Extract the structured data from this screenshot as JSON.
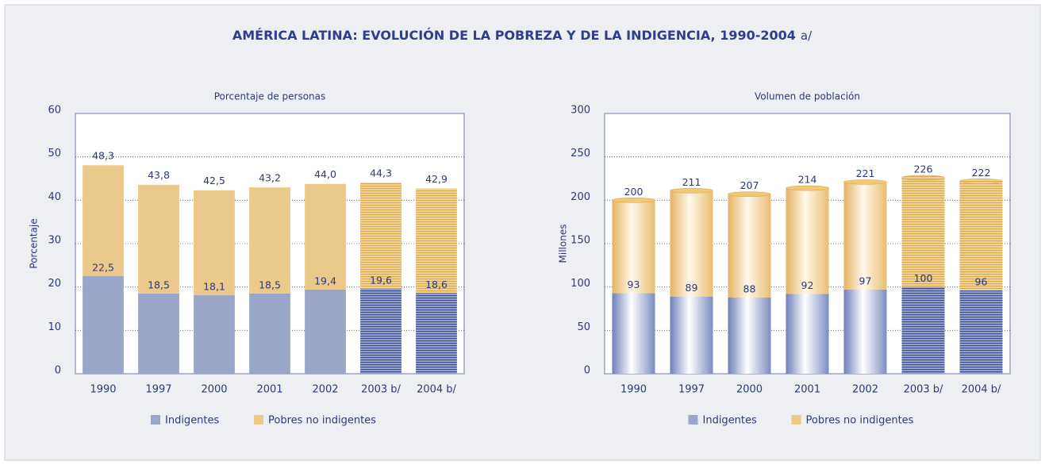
{
  "header": {
    "title": "AMÉRICA LATINA: EVOLUCIÓN DE LA POBREZA Y DE LA INDIGENCIA, 1990-2004",
    "note": "a/"
  },
  "chart_data": [
    {
      "type": "stacked-bar",
      "title": "Porcentaje de personas",
      "y_label": "Porcentaje",
      "categories": [
        "1990",
        "1997",
        "2000",
        "2001",
        "2002",
        "2003 b/",
        "2004 b/"
      ],
      "series": [
        {
          "name": "Indigentes",
          "color": "#9aa6c8",
          "values": [
            22.5,
            18.5,
            18.1,
            18.5,
            19.4,
            19.6,
            18.6
          ],
          "value_labels": [
            "22,5",
            "18,5",
            "18,1",
            "18,5",
            "19,4",
            "19,6",
            "18,6"
          ]
        },
        {
          "name": "Pobres no indigentes",
          "color": "#ebc98b",
          "values": [
            25.8,
            25.3,
            24.4,
            24.7,
            24.6,
            24.7,
            24.3
          ]
        }
      ],
      "totals": {
        "values": [
          48.3,
          43.8,
          42.5,
          43.2,
          44.0,
          44.3,
          42.9
        ],
        "value_labels": [
          "48,3",
          "43,8",
          "42,5",
          "43,2",
          "44,0",
          "44,3",
          "42,9"
        ]
      },
      "striped": [
        false,
        false,
        false,
        false,
        false,
        true,
        true
      ],
      "style": "flat",
      "ylim": [
        0,
        60
      ],
      "yticks": [
        0,
        10,
        20,
        30,
        40,
        50,
        60
      ],
      "grid": true
    },
    {
      "type": "stacked-bar",
      "title": "Volumen de población",
      "y_label": "Millones",
      "categories": [
        "1990",
        "1997",
        "2000",
        "2001",
        "2002",
        "2003 b/",
        "2004 b/"
      ],
      "series": [
        {
          "name": "Indigentes",
          "color": "#9aa6c8",
          "values": [
            93,
            89,
            88,
            92,
            97,
            100,
            96
          ]
        },
        {
          "name": "Pobres no indigentes",
          "color": "#ebc98b",
          "values": [
            107,
            122,
            119,
            122,
            124,
            126,
            126
          ]
        }
      ],
      "totals": {
        "values": [
          200,
          211,
          207,
          214,
          221,
          226,
          222
        ]
      },
      "striped": [
        false,
        false,
        false,
        false,
        false,
        true,
        true
      ],
      "style": "cylinder",
      "ylim": [
        0,
        300
      ],
      "yticks": [
        0,
        50,
        100,
        150,
        200,
        250,
        300
      ],
      "grid": true
    }
  ]
}
